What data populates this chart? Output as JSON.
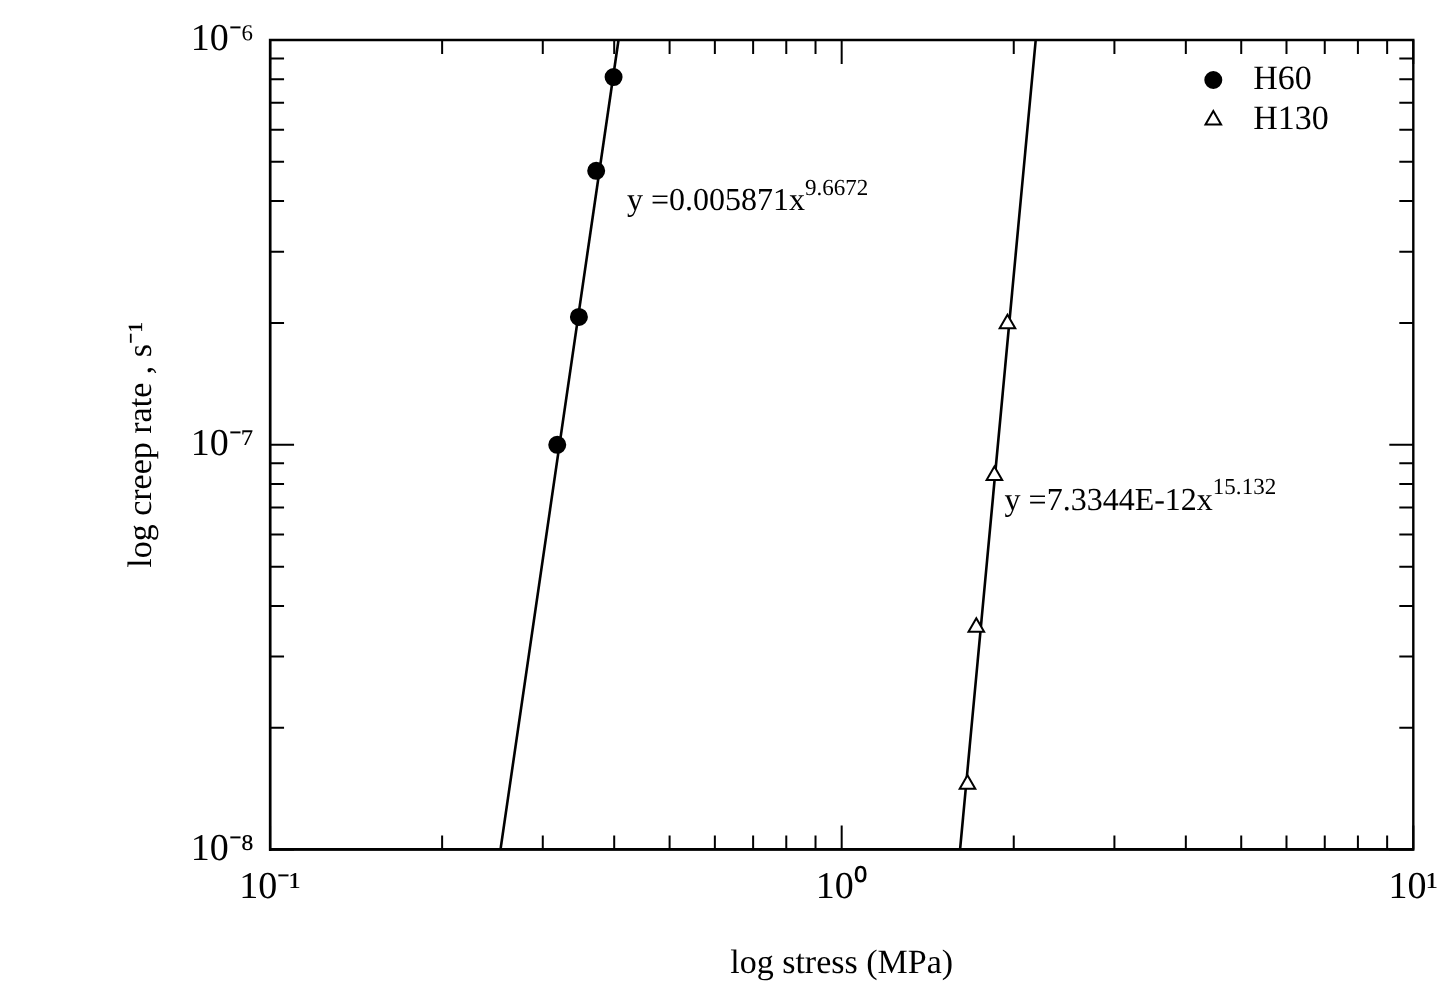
{
  "chart_data": {
    "type": "scatter",
    "xlabel": "log stress (MPa)",
    "ylabel": "log creep rate , s⁻¹",
    "log": "xy",
    "grid": false,
    "legend": "top right",
    "xlim": [
      0.1,
      10
    ],
    "ylim": [
      1e-08,
      1e-06
    ],
    "xticks": [
      {
        "value": 0.1,
        "label": "10⁻¹"
      },
      {
        "value": 0.2,
        "label": null
      },
      {
        "value": 0.3,
        "label": null
      },
      {
        "value": 0.4,
        "label": null
      },
      {
        "value": 0.5,
        "label": null
      },
      {
        "value": 0.6,
        "label": null
      },
      {
        "value": 0.7,
        "label": null
      },
      {
        "value": 0.8,
        "label": null
      },
      {
        "value": 0.9,
        "label": null
      },
      {
        "value": 1,
        "label": "10⁰"
      },
      {
        "value": 2,
        "label": null
      },
      {
        "value": 3,
        "label": null
      },
      {
        "value": 4,
        "label": null
      },
      {
        "value": 5,
        "label": null
      },
      {
        "value": 6,
        "label": null
      },
      {
        "value": 7,
        "label": null
      },
      {
        "value": 8,
        "label": null
      },
      {
        "value": 9,
        "label": null
      },
      {
        "value": 10,
        "label": "10¹"
      }
    ],
    "yticks": [
      {
        "value": 1e-08,
        "label": "10⁻⁸"
      },
      {
        "value": 2e-08,
        "label": null
      },
      {
        "value": 3e-08,
        "label": null
      },
      {
        "value": 4e-08,
        "label": null
      },
      {
        "value": 5e-08,
        "label": null
      },
      {
        "value": 6e-08,
        "label": null
      },
      {
        "value": 7e-08,
        "label": null
      },
      {
        "value": 8e-08,
        "label": null
      },
      {
        "value": 9e-08,
        "label": null
      },
      {
        "value": 1e-07,
        "label": "10⁻⁷"
      },
      {
        "value": 2e-07,
        "label": null
      },
      {
        "value": 3e-07,
        "label": null
      },
      {
        "value": 4e-07,
        "label": null
      },
      {
        "value": 5e-07,
        "label": null
      },
      {
        "value": 6e-07,
        "label": null
      },
      {
        "value": 7e-07,
        "label": null
      },
      {
        "value": 8e-07,
        "label": null
      },
      {
        "value": 9e-07,
        "label": null
      },
      {
        "value": 1e-06,
        "label": "10⁻⁶"
      }
    ],
    "series": [
      {
        "name": "H60",
        "type": "scatter",
        "marker": "circle",
        "color": "#000000",
        "x": [
          0.399,
          0.372,
          0.347,
          0.318
        ],
        "values": [
          8.1e-07,
          4.75e-07,
          2.07e-07,
          1e-07
        ]
      },
      {
        "name": "H130",
        "type": "scatter",
        "marker": "triangle",
        "color": "#000000",
        "x": [
          1.95,
          1.85,
          1.72,
          1.66
        ],
        "values": [
          1.99e-07,
          8.4e-08,
          3.54e-08,
          1.45e-08
        ]
      },
      {
        "type": "line",
        "color": "#000000",
        "x": [
          0.253,
          0.407
        ],
        "values": [
          1e-08,
          1e-06
        ]
      },
      {
        "type": "line",
        "color": "#000000",
        "x": [
          1.611,
          2.185
        ],
        "values": [
          1e-08,
          1e-06
        ]
      }
    ],
    "annotations": [
      "y =0.005871x$^{9.6672}$",
      "y =7.3344E-12x$^{15.132}$"
    ]
  }
}
